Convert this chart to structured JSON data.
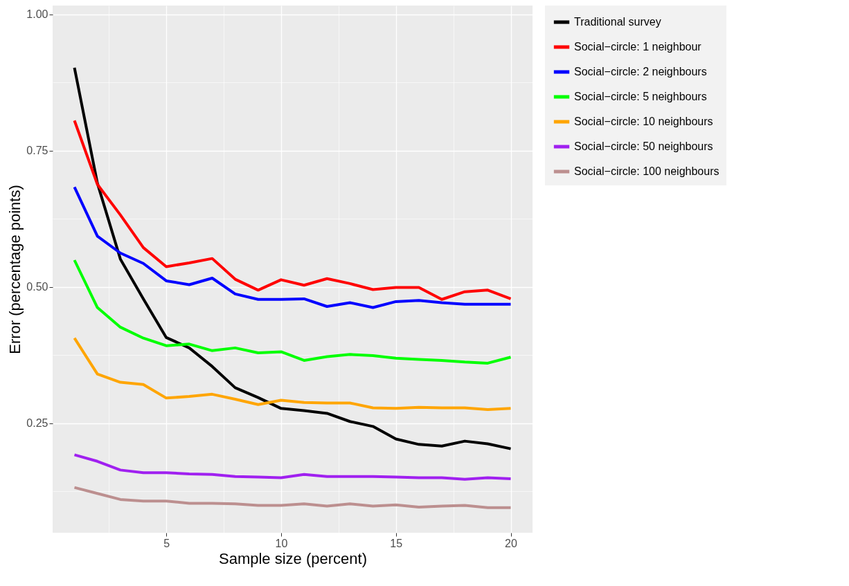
{
  "chart_data": {
    "type": "line",
    "xlabel": "Sample size (percent)",
    "ylabel": "Error (percentage points)",
    "x": [
      1,
      2,
      3,
      4,
      5,
      6,
      7,
      8,
      9,
      10,
      11,
      12,
      13,
      14,
      15,
      16,
      17,
      18,
      19,
      20
    ],
    "xlim": [
      0.05,
      20.95
    ],
    "ylim": [
      0.049,
      1.016
    ],
    "xticks": [
      {
        "value": 2.5,
        "label": null
      },
      5,
      {
        "value": 7.5,
        "label": null
      },
      10,
      {
        "value": 12.5,
        "label": null
      },
      15,
      {
        "value": 17.5,
        "label": null
      },
      20
    ],
    "yticks": [
      {
        "value": 0.125,
        "label": null
      },
      0.25,
      {
        "value": 0.375,
        "label": null
      },
      {
        "value": 0.5,
        "label": "0.50"
      },
      {
        "value": 0.625,
        "label": null
      },
      0.75,
      {
        "value": 0.875,
        "label": null
      },
      {
        "value": 1,
        "label": "1.00"
      }
    ],
    "grid": true,
    "legend": "right",
    "line_style": "solid",
    "marker": "none",
    "series": [
      {
        "name": "Traditional survey",
        "color": "#000000",
        "values": [
          0.902,
          0.69,
          0.551,
          0.478,
          0.407,
          0.388,
          0.354,
          0.315,
          0.297,
          0.277,
          0.273,
          0.268,
          0.253,
          0.244,
          0.221,
          0.211,
          0.208,
          0.217,
          0.212,
          0.203
        ]
      },
      {
        "name": "Social−circle: 1 neighbour",
        "color": "#ff0000",
        "values": [
          0.805,
          0.688,
          0.632,
          0.572,
          0.537,
          0.544,
          0.552,
          0.514,
          0.494,
          0.513,
          0.503,
          0.515,
          0.506,
          0.495,
          0.499,
          0.499,
          0.477,
          0.491,
          0.494,
          0.478
        ]
      },
      {
        "name": "Social−circle: 2 neighbours",
        "color": "#0000ff",
        "values": [
          0.683,
          0.593,
          0.562,
          0.543,
          0.511,
          0.504,
          0.516,
          0.487,
          0.477,
          0.477,
          0.478,
          0.464,
          0.471,
          0.462,
          0.473,
          0.475,
          0.471,
          0.468,
          0.468,
          0.468
        ]
      },
      {
        "name": "Social−circle: 5 neighbours",
        "color": "#00ff00",
        "values": [
          0.549,
          0.462,
          0.426,
          0.406,
          0.392,
          0.395,
          0.383,
          0.388,
          0.379,
          0.381,
          0.365,
          0.372,
          0.376,
          0.374,
          0.369,
          0.367,
          0.365,
          0.362,
          0.36,
          0.371
        ]
      },
      {
        "name": "Social−circle: 10 neighbours",
        "color": "#ffa500",
        "values": [
          0.406,
          0.34,
          0.325,
          0.321,
          0.296,
          0.299,
          0.303,
          0.294,
          0.284,
          0.292,
          0.288,
          0.287,
          0.287,
          0.278,
          0.277,
          0.279,
          0.278,
          0.278,
          0.275,
          0.277
        ]
      },
      {
        "name": "Social−circle: 50 neighbours",
        "color": "#a020f0",
        "values": [
          0.192,
          0.18,
          0.164,
          0.159,
          0.159,
          0.157,
          0.156,
          0.152,
          0.151,
          0.15,
          0.156,
          0.152,
          0.152,
          0.152,
          0.151,
          0.15,
          0.15,
          0.147,
          0.15,
          0.148
        ]
      },
      {
        "name": "Social−circle: 100 neighbours",
        "color": "#bc8f8f",
        "values": [
          0.132,
          0.121,
          0.11,
          0.107,
          0.107,
          0.103,
          0.103,
          0.102,
          0.099,
          0.099,
          0.102,
          0.098,
          0.102,
          0.098,
          0.1,
          0.096,
          0.098,
          0.099,
          0.095,
          0.095
        ]
      }
    ]
  }
}
